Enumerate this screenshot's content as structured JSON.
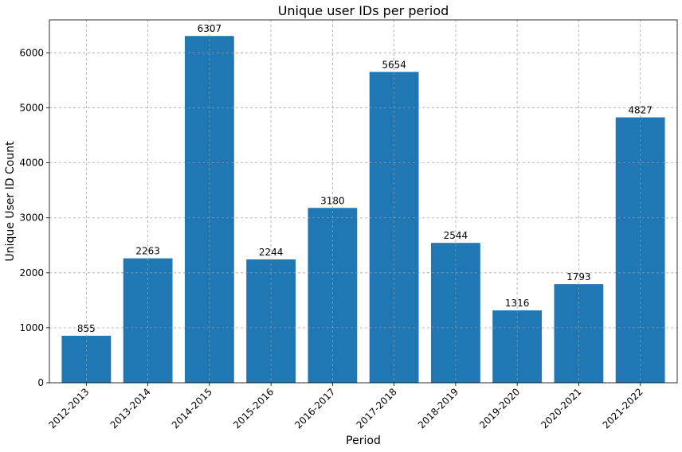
{
  "chart_data": {
    "type": "bar",
    "title": "Unique user IDs per period",
    "xlabel": "Period",
    "ylabel": "Unique User ID Count",
    "categories": [
      "2012-2013",
      "2013-2014",
      "2014-2015",
      "2015-2016",
      "2016-2017",
      "2017-2018",
      "2018-2019",
      "2019-2020",
      "2020-2021",
      "2021-2022"
    ],
    "values": [
      855,
      2263,
      6307,
      2244,
      3180,
      5654,
      2544,
      1316,
      1793,
      4827
    ],
    "ylim": [
      0,
      6600
    ],
    "yticks": [
      0,
      1000,
      2000,
      3000,
      4000,
      5000,
      6000
    ],
    "grid": true,
    "bar_color": "#1f77b4"
  }
}
